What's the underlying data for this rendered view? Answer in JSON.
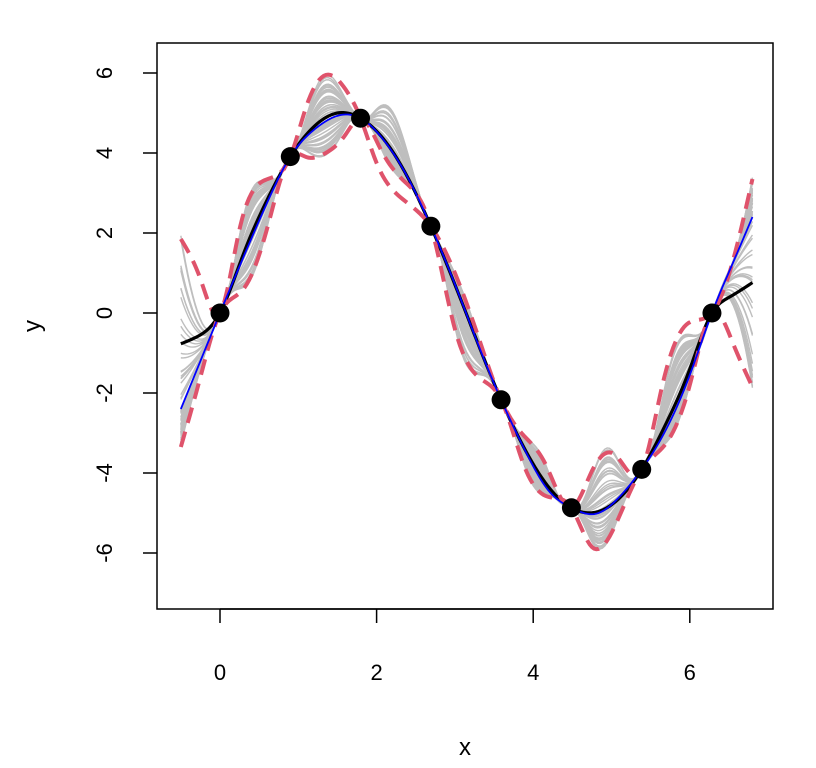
{
  "chart_data": {
    "type": "line",
    "title": "",
    "xlabel": "x",
    "ylabel": "y",
    "xlim": [
      -0.55,
      6.85
    ],
    "ylim": [
      -7.4,
      6.8
    ],
    "x_ticks": [
      0,
      2,
      4,
      6
    ],
    "y_ticks": [
      -6,
      -4,
      -2,
      0,
      2,
      4,
      6
    ],
    "x_tick_labels": [
      "0",
      "2",
      "4",
      "6"
    ],
    "y_tick_labels": [
      "-6",
      "-4",
      "-2",
      "0",
      "2",
      "4",
      "6"
    ],
    "grid": false,
    "legend": "none",
    "observed_points": {
      "x": [
        0.0,
        0.898,
        1.795,
        2.693,
        3.59,
        4.488,
        5.386,
        6.283
      ],
      "y": [
        0.0,
        3.91,
        4.87,
        2.17,
        -2.17,
        -4.87,
        -3.91,
        0.0
      ]
    },
    "series": [
      {
        "role": "posterior sample paths (gray)",
        "color": "#bebebe",
        "count": 60
      },
      {
        "role": "true function",
        "color": "#000000",
        "x": [
          -0.5,
          -0.3,
          0.0,
          0.3,
          0.6,
          0.898,
          1.2,
          1.5,
          1.795,
          2.1,
          2.4,
          2.693,
          3.0,
          3.3,
          3.59,
          3.9,
          4.2,
          4.488,
          4.8,
          5.1,
          5.386,
          5.7,
          6.0,
          6.283,
          6.5,
          6.8
        ],
        "y": [
          -0.77,
          -0.6,
          0.0,
          1.48,
          2.82,
          3.91,
          4.66,
          5.0,
          4.87,
          4.32,
          3.38,
          2.17,
          0.71,
          -0.79,
          -2.17,
          -3.43,
          -4.36,
          -4.87,
          -4.98,
          -4.63,
          -3.91,
          -2.75,
          -1.4,
          0.0,
          0.39,
          0.76
        ]
      },
      {
        "role": "posterior mean",
        "color": "#0000ff",
        "x": [
          -0.5,
          -0.25,
          0.0,
          0.3,
          0.6,
          0.898,
          1.2,
          1.5,
          1.795,
          2.1,
          2.4,
          2.693,
          3.0,
          3.3,
          3.59,
          3.9,
          4.2,
          4.488,
          4.8,
          5.1,
          5.386,
          5.7,
          6.0,
          6.283,
          6.55,
          6.8
        ],
        "y": [
          -2.4,
          -1.2,
          0.0,
          1.4,
          2.75,
          3.91,
          4.58,
          4.93,
          4.87,
          4.3,
          3.38,
          2.17,
          0.72,
          -0.8,
          -2.17,
          -3.45,
          -4.45,
          -4.87,
          -5.02,
          -4.6,
          -3.91,
          -2.9,
          -1.55,
          0.0,
          1.25,
          2.4
        ]
      },
      {
        "role": "pointwise credible band (upper)",
        "color": "#df536b",
        "dash": true,
        "x": [
          -0.5,
          -0.25,
          0.0,
          0.25,
          0.55,
          0.898,
          1.1,
          1.35,
          1.6,
          1.795,
          2.0,
          2.3,
          2.693,
          3.0,
          3.3,
          3.59,
          3.85,
          4.15,
          4.488,
          4.75,
          5.05,
          5.386,
          5.65,
          5.95,
          6.283,
          6.55,
          6.8
        ],
        "y": [
          1.85,
          0.85,
          0.0,
          2.1,
          3.3,
          3.91,
          5.15,
          5.95,
          5.6,
          4.87,
          3.75,
          2.9,
          2.17,
          1.0,
          -0.6,
          -2.17,
          -3.0,
          -3.75,
          -4.87,
          -3.95,
          -3.55,
          -3.91,
          -1.8,
          -0.3,
          0.0,
          1.3,
          3.35
        ]
      },
      {
        "role": "pointwise credible band (lower)",
        "color": "#df536b",
        "dash": true,
        "x": [
          -0.5,
          -0.25,
          0.0,
          0.3,
          0.6,
          0.898,
          1.1,
          1.35,
          1.6,
          1.795,
          2.05,
          2.35,
          2.693,
          3.0,
          3.3,
          3.59,
          3.9,
          4.2,
          4.488,
          4.75,
          5.05,
          5.386,
          5.7,
          6.0,
          6.283,
          6.55,
          6.8
        ],
        "y": [
          -3.35,
          -1.6,
          0.0,
          0.6,
          2.1,
          3.91,
          3.9,
          4.0,
          4.45,
          4.87,
          4.1,
          3.3,
          2.17,
          -0.4,
          -1.6,
          -2.17,
          -3.9,
          -4.6,
          -4.87,
          -5.85,
          -5.3,
          -3.91,
          -3.25,
          -1.8,
          0.0,
          -0.75,
          -1.85
        ]
      }
    ]
  }
}
